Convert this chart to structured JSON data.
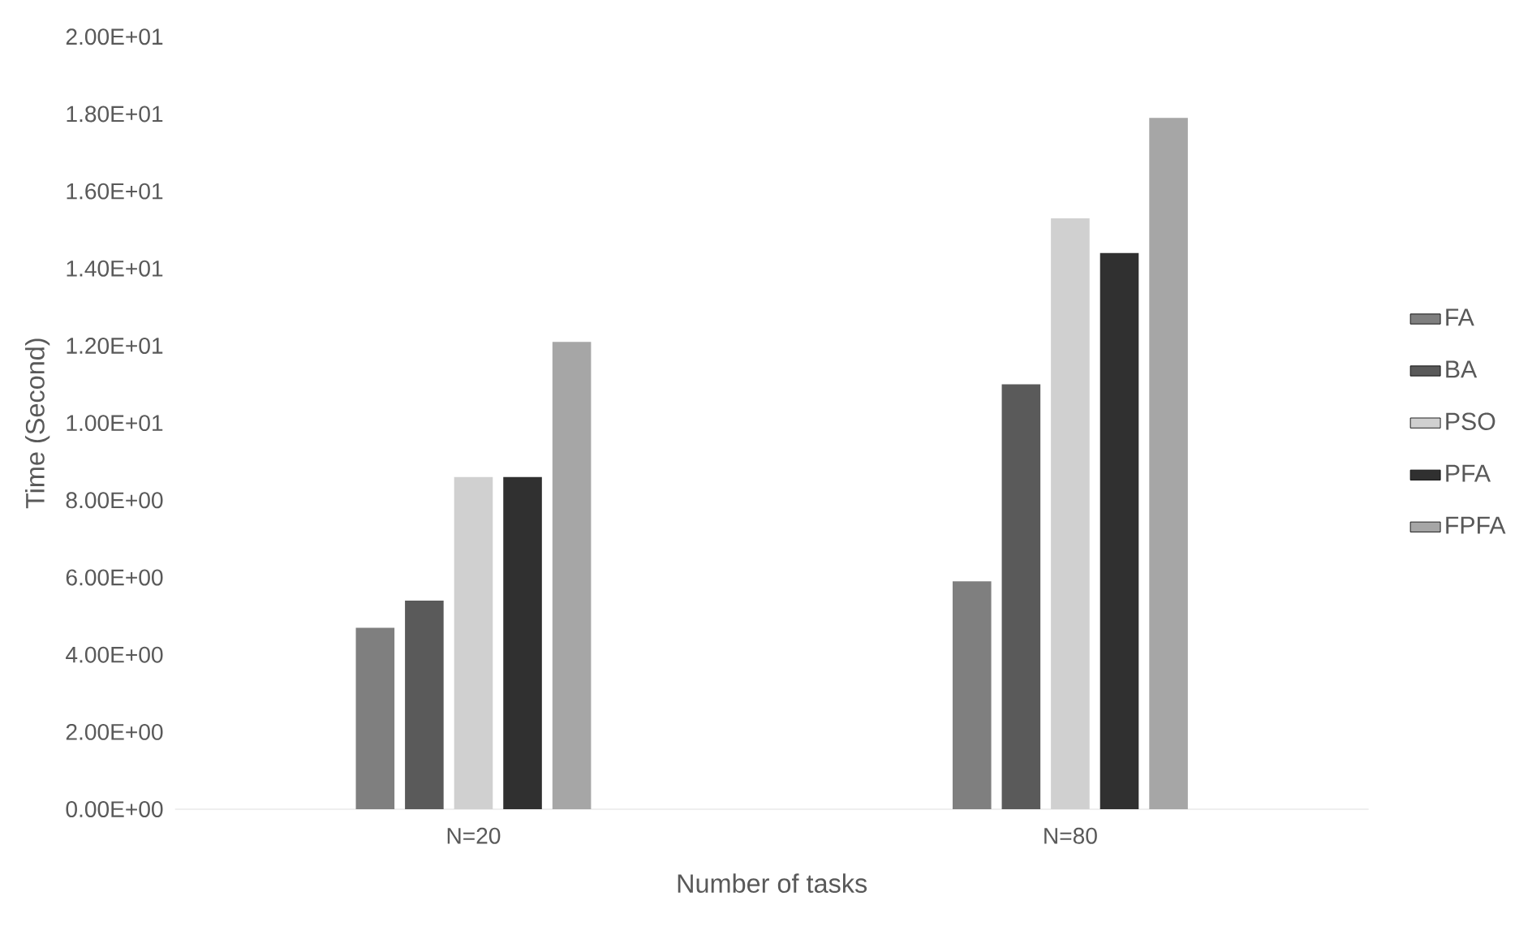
{
  "chart_data": {
    "type": "bar",
    "xlabel": "Number of tasks",
    "ylabel": "Time (Second)",
    "categories": [
      "N=20",
      "N=80"
    ],
    "series": [
      {
        "name": "FA",
        "color": "#7f7f7f",
        "values": [
          4.7,
          5.9
        ]
      },
      {
        "name": "BA",
        "color": "#5a5a5a",
        "values": [
          5.4,
          11.0
        ]
      },
      {
        "name": "PSO",
        "color": "#d0d0d0",
        "values": [
          8.6,
          15.3
        ]
      },
      {
        "name": "PFA",
        "color": "#303030",
        "values": [
          8.6,
          14.4
        ]
      },
      {
        "name": "FPFA",
        "color": "#a6a6a6",
        "values": [
          12.1,
          17.9
        ]
      }
    ],
    "ylim": [
      0,
      20
    ],
    "yticks": [
      {
        "value": 0,
        "label": "0.00E+00"
      },
      {
        "value": 2,
        "label": "2.00E+00"
      },
      {
        "value": 4,
        "label": "4.00E+00"
      },
      {
        "value": 6,
        "label": "6.00E+00"
      },
      {
        "value": 8,
        "label": "8.00E+00"
      },
      {
        "value": 10,
        "label": "1.00E+01"
      },
      {
        "value": 12,
        "label": "1.20E+01"
      },
      {
        "value": 14,
        "label": "1.40E+01"
      },
      {
        "value": 16,
        "label": "1.60E+01"
      },
      {
        "value": 18,
        "label": "1.80E+01"
      },
      {
        "value": 20,
        "label": "2.00E+01"
      }
    ],
    "legend": "right"
  }
}
